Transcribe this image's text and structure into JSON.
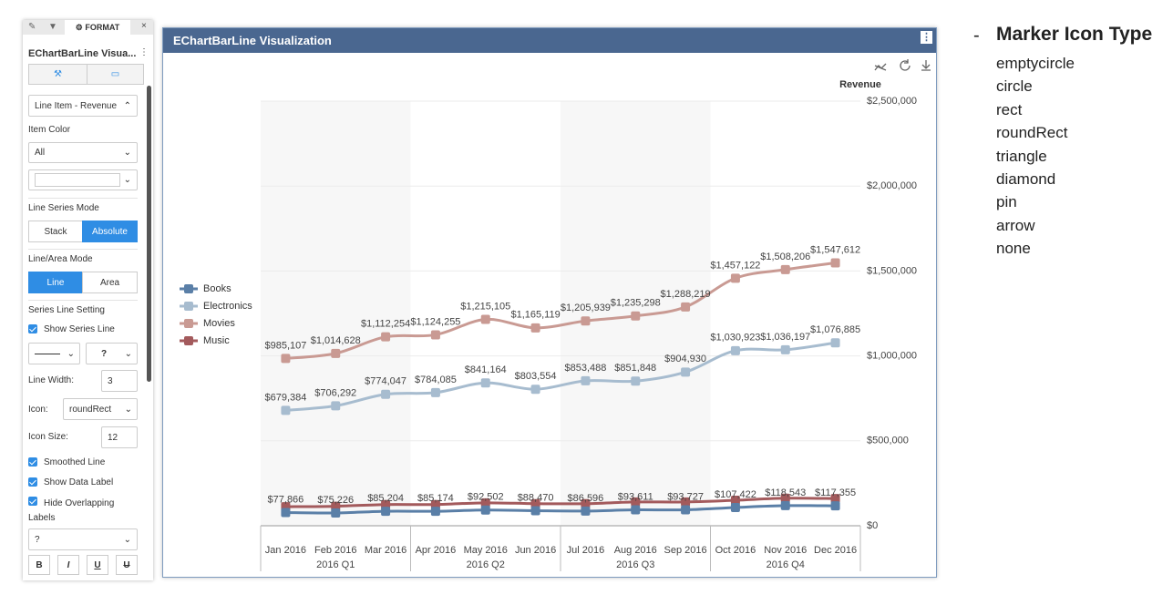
{
  "panel": {
    "tab": "FORMAT",
    "title": "EChartBarLine Visua...",
    "dropdown_item": "Line Item - Revenue",
    "item_color_label": "Item Color",
    "item_color_value": "All",
    "line_series_mode_label": "Line Series Mode",
    "line_series_mode_options": [
      "Stack",
      "Absolute"
    ],
    "line_area_mode_label": "Line/Area Mode",
    "line_area_mode_options": [
      "Line",
      "Area"
    ],
    "series_line_setting_label": "Series Line Setting",
    "show_series_line": "Show Series Line",
    "line_style_value": "?",
    "line_width_label": "Line Width:",
    "line_width_value": "3",
    "icon_label": "Icon:",
    "icon_value": "roundRect",
    "icon_size_label": "Icon Size:",
    "icon_size_value": "12",
    "smoothed_line": "Smoothed Line",
    "show_data_label": "Show Data Label",
    "hide_overlapping_labels": "Hide Overlapping Labels",
    "font_value": "?",
    "format_buttons": [
      "B",
      "I",
      "U",
      "U"
    ]
  },
  "chart_data": {
    "type": "line",
    "title": "EChartBarLine Visualization",
    "y_label": "Revenue",
    "smooth": true,
    "legend_position": "left",
    "categories": [
      "Jan 2016",
      "Feb 2016",
      "Mar 2016",
      "Apr 2016",
      "May 2016",
      "Jun 2016",
      "Jul 2016",
      "Aug 2016",
      "Sep 2016",
      "Oct 2016",
      "Nov 2016",
      "Dec 2016"
    ],
    "category_groups": [
      "2016 Q1",
      "2016 Q2",
      "2016 Q3",
      "2016 Q4"
    ],
    "ylim": [
      0,
      2500000
    ],
    "yticks": [
      {
        "value": 0,
        "label": "$0"
      },
      {
        "value": 500000,
        "label": "$500,000"
      },
      {
        "value": 1000000,
        "label": "$1,000,000"
      },
      {
        "value": 1500000,
        "label": "$1,500,000"
      },
      {
        "value": 2000000,
        "label": "$2,000,000"
      },
      {
        "value": 2500000,
        "label": "$2,500,000"
      }
    ],
    "series": [
      {
        "name": "Books",
        "color": "#5a7fa7",
        "values": [
          77866,
          75226,
          85204,
          85174,
          92502,
          88470,
          86596,
          93611,
          93727,
          107422,
          118543,
          117355
        ],
        "value_labels": [
          "$77,866",
          "$75,226",
          "$85,204",
          "$85,174",
          "$92,502",
          "$88,470",
          "$86,596",
          "$93,611",
          "$93,727",
          "$107,422",
          "$118,543",
          "$117,355"
        ]
      },
      {
        "name": "Electronics",
        "color": "#a7bccf",
        "values": [
          679384,
          706292,
          774047,
          784085,
          841164,
          803554,
          853488,
          851848,
          904930,
          1030923,
          1036197,
          1076885
        ],
        "value_labels": [
          "$679,384",
          "$706,292",
          "$774,047",
          "$784,085",
          "$841,164",
          "$803,554",
          "$853,488",
          "$851,848",
          "$904,930",
          "$1,030,923",
          "$1,036,197",
          "$1,076,885"
        ]
      },
      {
        "name": "Movies",
        "color": "#c99a93",
        "values": [
          985107,
          1014628,
          1112254,
          1124255,
          1215105,
          1165119,
          1205939,
          1235298,
          1288219,
          1457122,
          1508206,
          1547612
        ],
        "value_labels": [
          "$985,107",
          "$1,014,628",
          "$1,112,254",
          "$1,124,255",
          "$1,215,105",
          "$1,165,119",
          "$1,205,939",
          "$1,235,298",
          "$1,288,219",
          "$1,457,122",
          "$1,508,206",
          "$1,547,612"
        ]
      },
      {
        "name": "Music",
        "color": "#a35a5c",
        "values": [
          112000,
          115000,
          125000,
          125000,
          135000,
          130000,
          130000,
          140000,
          140000,
          150000,
          162000,
          160000
        ]
      }
    ]
  },
  "notes": {
    "heading": "Marker Icon Type",
    "items": [
      "emptycircle",
      "circle",
      "rect",
      "roundRect",
      "triangle",
      "diamond",
      "pin",
      "arrow",
      "none"
    ]
  }
}
